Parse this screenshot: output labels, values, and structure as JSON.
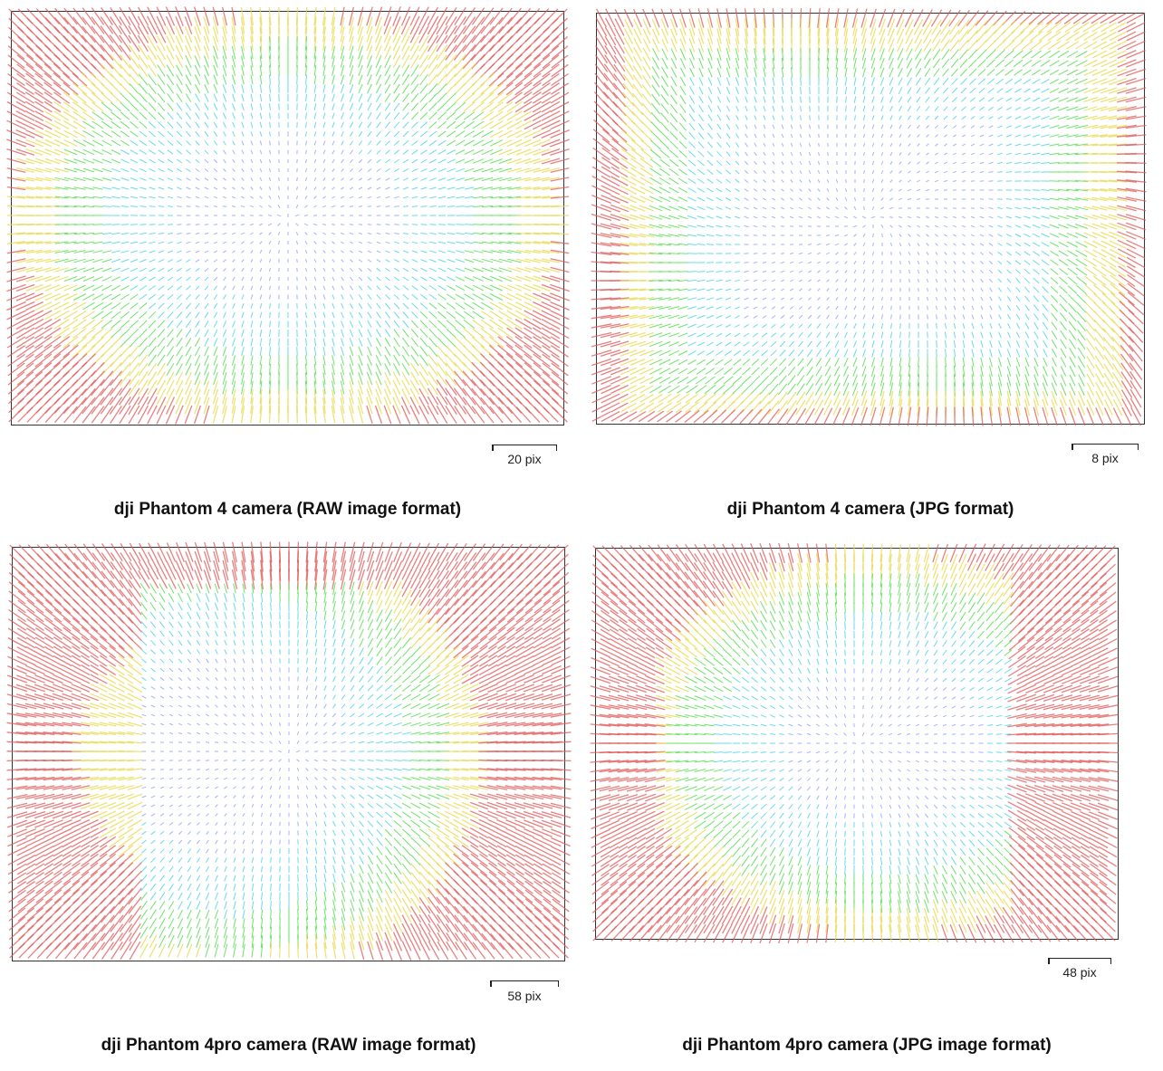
{
  "panels": [
    {
      "caption": "dji Phantom 4 camera (RAW image format)",
      "scale_label": "20 pix"
    },
    {
      "caption": "dji Phantom 4 camera (JPG format)",
      "scale_label": "8 pix"
    },
    {
      "caption": "dji Phantom 4pro camera (RAW image format)",
      "scale_label": "58 pix"
    },
    {
      "caption": "dji Phantom 4pro camera (JPG image format)",
      "scale_label": "48 pix"
    }
  ],
  "colors": {
    "magnitude_low": "#9aa8ff",
    "magnitude_mid_low": "#5ad6e6",
    "magnitude_mid": "#5ee05a",
    "magnitude_mid_high": "#e8d84a",
    "magnitude_high": "#e05656",
    "frame": "#333333"
  }
}
